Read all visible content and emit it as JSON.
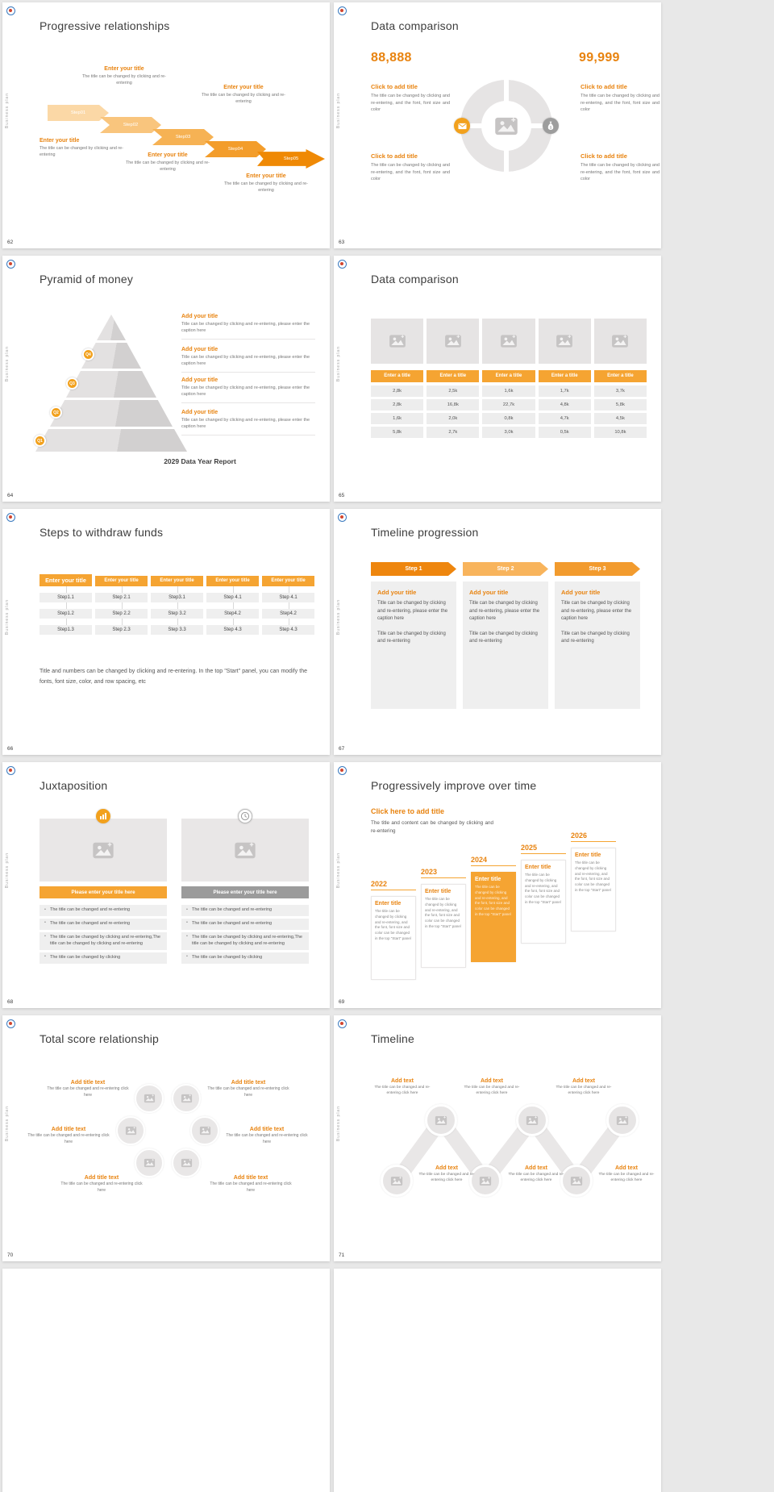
{
  "page": {
    "background": "#e8e8e8",
    "accent_color": "#e8830f",
    "header_color": "#f5a432",
    "side_label": "Business plan"
  },
  "slides": {
    "s62": {
      "number": "62",
      "title": "Progressive relationships",
      "steps": [
        "Step01",
        "Step02",
        "Step03",
        "Step04",
        "Step05"
      ],
      "blocks": [
        {
          "title": "Enter your title",
          "body": "The title can be changed by clicking and re-entering"
        },
        {
          "title": "Enter your title",
          "body": "The title can be changed by clicking and re-entering"
        },
        {
          "title": "Enter your title",
          "body": "The title can be changed by clicking and re-entering"
        },
        {
          "title": "Enter your title",
          "body": "The title can be changed by clicking and re-entering"
        },
        {
          "title": "Enter your title",
          "body": "The title can be changed by clicking and re-entering"
        }
      ]
    },
    "s63": {
      "number": "63",
      "title": "Data comparison",
      "value_left": "88,888",
      "value_right": "99,999",
      "items": [
        {
          "title": "Click to add title",
          "body": "The title can be changed by clicking and re-entering, and the font, font size and color"
        },
        {
          "title": "Click to add title",
          "body": "The title can be changed by clicking and re-entering, and the font, font size and color"
        },
        {
          "title": "Click to add title",
          "body": "The title can be changed by clicking and re-entering, and the font, font size and color"
        },
        {
          "title": "Click to add title",
          "body": "The title can be changed by clicking and re-entering, and the font, font size and color"
        }
      ]
    },
    "s64": {
      "number": "64",
      "title": "Pyramid of money",
      "levels": [
        "Q4",
        "Q3",
        "Q2",
        "Q1"
      ],
      "items": [
        {
          "title": "Add your title",
          "body": "Title can be changed by clicking and re-entering, please enter the caption here"
        },
        {
          "title": "Add your title",
          "body": "Title can be changed by clicking and re-entering, please enter the caption here"
        },
        {
          "title": "Add your title",
          "body": "Title can be changed by clicking and re-entering, please enter the caption here"
        },
        {
          "title": "Add your title",
          "body": "Title can be changed by clicking and re-entering, please enter the caption here"
        }
      ],
      "caption": "2029 Data Year Report"
    },
    "s65": {
      "number": "65",
      "title": "Data comparison",
      "headers": [
        "Enter a title",
        "Enter a title",
        "Enter a title",
        "Enter a title",
        "Enter a title"
      ],
      "rows": [
        [
          "2,8k",
          "2,5k",
          "1,6k",
          "1,7k",
          "3,7k"
        ],
        [
          "2,8k",
          "16,8k",
          "22,7k",
          "4,8k",
          "5,8k"
        ],
        [
          "1,6k",
          "2,0k",
          "0,8k",
          "4,7k",
          "4,5k"
        ],
        [
          "5,8k",
          "2,7k",
          "3,0k",
          "0,5k",
          "10,8k"
        ]
      ]
    },
    "s66": {
      "number": "66",
      "title": "Steps to withdraw funds",
      "headers": [
        "Enter your title",
        "Enter your title",
        "Enter your title",
        "Enter your title",
        "Enter your title"
      ],
      "columns": [
        [
          "Step1.1",
          "Step1.2",
          "Step1.3"
        ],
        [
          "Step 2.1",
          "Step 2.2",
          "Step 2.3"
        ],
        [
          "Step3.1",
          "Step 3.2",
          "Step 3.3"
        ],
        [
          "Step 4.1",
          "Step4.2",
          "Step 4.3"
        ],
        [
          "Step 4.1",
          "Step4.2",
          "Step 4.3"
        ]
      ],
      "note": "Title and numbers can be changed by clicking and re-entering. In the top \"Start\" panel, you can modify the fonts, font size, color, and row spacing, etc"
    },
    "s67": {
      "number": "67",
      "title": "Timeline progression",
      "steps": [
        "Step 1",
        "Step 2",
        "Step 3"
      ],
      "panels": [
        {
          "title": "Add your title",
          "body1": "Title can be changed by clicking and re-entering, please enter the caption here",
          "body2": "Title can be changed by clicking and re-entering"
        },
        {
          "title": "Add your title",
          "body1": "Title can be changed by clicking and re-entering, please enter the caption here",
          "body2": "Title can be changed by clicking and re-entering"
        },
        {
          "title": "Add your title",
          "body1": "Title can be changed by clicking and re-entering, please enter the caption here",
          "body2": "Title can be changed by clicking and re-entering"
        }
      ]
    },
    "s68": {
      "number": "68",
      "title": "Juxtaposition",
      "cards": [
        {
          "banner": "Please enter your title here",
          "bullets": [
            "The title can be changed and re-entering",
            "The title can be changed and re-entering",
            "The title can be changed by clicking and re-entering,The title can be changed by clicking and re-entering",
            "The title can be changed by clicking"
          ]
        },
        {
          "banner": "Please enter your title here",
          "bullets": [
            "The title can be changed and re-entering",
            "The title can be changed and re-entering",
            "The title can be changed by clicking and re-entering,The title can be changed by clicking and re-entering",
            "The title can be changed by clicking"
          ]
        }
      ]
    },
    "s69": {
      "number": "69",
      "title": "Progressively improve over time",
      "lead_title": "Click here to add title",
      "lead_body": "The title and content can be changed by clicking and re-entering",
      "years": [
        {
          "year": "2022",
          "title": "Enter title",
          "body": "The title can be changed by clicking and re-entering, and the font, font size and color can be changed in the top \"Start\" panel"
        },
        {
          "year": "2023",
          "title": "Enter title",
          "body": "The title can be changed by clicking and re-entering, and the font, font size and color can be changed in the top \"Start\" panel"
        },
        {
          "year": "2024",
          "title": "Enter title",
          "body": "The title can be changed by clicking and re-entering, and the font, font size and color can be changed in the top \"Start\" panel"
        },
        {
          "year": "2025",
          "title": "Enter title",
          "body": "The title can be changed by clicking and re-entering, and the font, font size and color can be changed in the top \"Start\" panel"
        },
        {
          "year": "2026",
          "title": "Enter title",
          "body": "The title can be changed by clicking and re-entering, and the font, font size and color can be changed in the top \"Start\" panel"
        }
      ]
    },
    "s70": {
      "number": "70",
      "title": "Total score relationship",
      "items": [
        {
          "title": "Add title text",
          "body": "The title can be changed and re-entering click here"
        },
        {
          "title": "Add title text",
          "body": "The title can be changed and re-entering click here"
        },
        {
          "title": "Add title text",
          "body": "The title can be changed and re-entering click here"
        },
        {
          "title": "Add title text",
          "body": "The title can be changed and re-entering click here"
        },
        {
          "title": "Add title text",
          "body": "The title can be changed and re-entering click here"
        },
        {
          "title": "Add title text",
          "body": "The title can be changed and re-entering click here"
        }
      ]
    },
    "s71": {
      "number": "71",
      "title": "Timeline",
      "items": [
        {
          "title": "Add text",
          "body": "The title can be changed and re-entering click here"
        },
        {
          "title": "Add text",
          "body": "The title can be changed and re-entering click here"
        },
        {
          "title": "Add text",
          "body": "The title can be changed and re-entering click here"
        },
        {
          "title": "Add text",
          "body": "The title can be changed and re-entering click here"
        },
        {
          "title": "Add text",
          "body": "The title can be changed and re-entering click here"
        },
        {
          "title": "Add text",
          "body": "The title can be changed and re-entering click here"
        }
      ]
    }
  }
}
